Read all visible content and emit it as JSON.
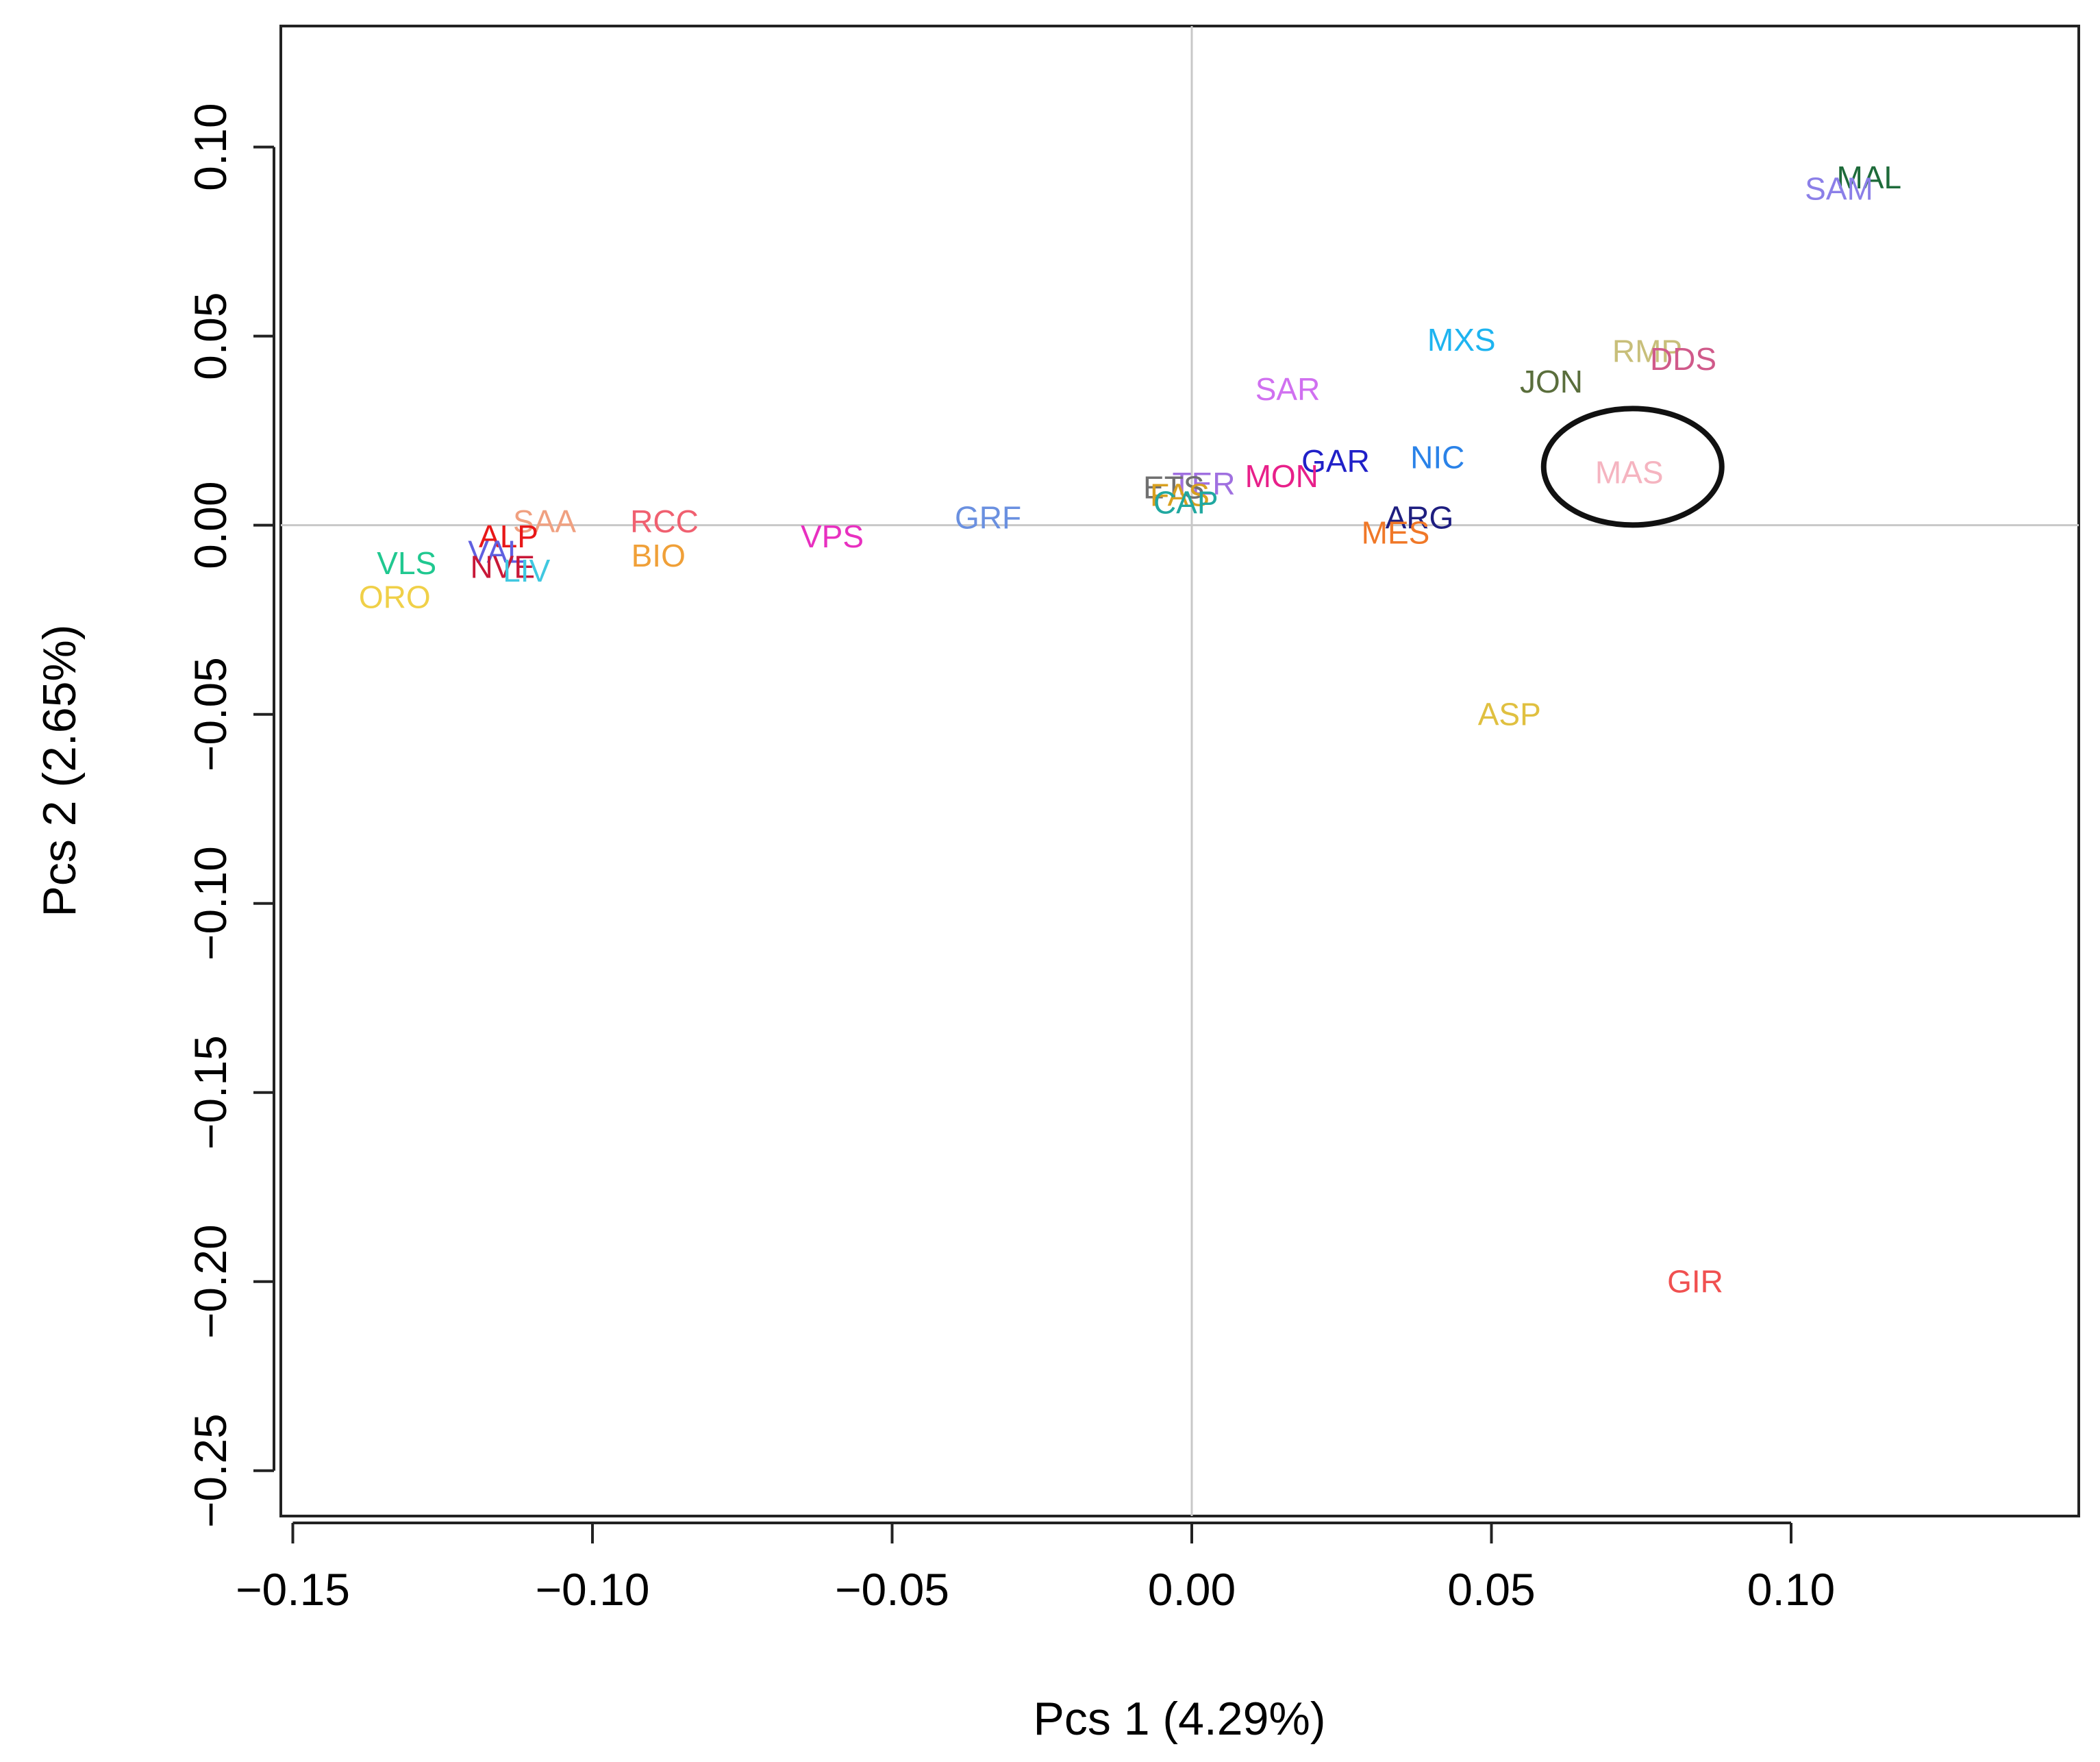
{
  "chart_data": {
    "type": "scatter",
    "title": "",
    "xlabel": "Pcs 1 (4.29%)",
    "ylabel": "Pcs 2 (2.65%)",
    "xlim": [
      -0.152,
      0.148
    ],
    "ylim": [
      -0.262,
      0.132
    ],
    "xticks": [
      -0.15,
      -0.1,
      -0.05,
      0.0,
      0.05,
      0.1
    ],
    "xtick_labels": [
      "−0.15",
      "−0.10",
      "−0.05",
      "0.00",
      "0.05",
      "0.10"
    ],
    "yticks": [
      0.1,
      0.05,
      0.0,
      -0.05,
      -0.1,
      -0.15,
      -0.2,
      -0.25
    ],
    "ytick_labels": [
      "0.10",
      "0.05",
      "0.00",
      "−0.05",
      "−0.10",
      "−0.15",
      "−0.20",
      "−0.25"
    ],
    "reference_lines": {
      "x": 0,
      "y": 0,
      "color": "#c8c8c8"
    },
    "highlight": {
      "label": "MAS",
      "shape": "ellipse"
    },
    "points": [
      {
        "label": "MAL",
        "x": 0.113,
        "y": 0.092,
        "color": "#1e6b3a"
      },
      {
        "label": "SAM",
        "x": 0.108,
        "y": 0.089,
        "color": "#8b7fe8"
      },
      {
        "label": "MXS",
        "x": 0.045,
        "y": 0.049,
        "color": "#1eb4f0"
      },
      {
        "label": "RMP",
        "x": 0.076,
        "y": 0.046,
        "color": "#c8bf7a"
      },
      {
        "label": "DDS",
        "x": 0.082,
        "y": 0.044,
        "color": "#d05a8a"
      },
      {
        "label": "JON",
        "x": 0.06,
        "y": 0.038,
        "color": "#5a6e3c"
      },
      {
        "label": "SAR",
        "x": 0.016,
        "y": 0.036,
        "color": "#d070f0"
      },
      {
        "label": "GAR",
        "x": 0.024,
        "y": 0.017,
        "color": "#2020c8"
      },
      {
        "label": "NIC",
        "x": 0.041,
        "y": 0.018,
        "color": "#2a82e8"
      },
      {
        "label": "MAS",
        "x": 0.073,
        "y": 0.014,
        "color": "#f5b4c0"
      },
      {
        "label": "MON",
        "x": 0.015,
        "y": 0.013,
        "color": "#e8208a"
      },
      {
        "label": "TER",
        "x": 0.002,
        "y": 0.011,
        "color": "#a070e0"
      },
      {
        "label": "ETS",
        "x": -0.003,
        "y": 0.01,
        "color": "#707070"
      },
      {
        "label": "FAS",
        "x": -0.002,
        "y": 0.008,
        "color": "#d8a020"
      },
      {
        "label": "CAP",
        "x": -0.001,
        "y": 0.006,
        "color": "#20a8a0"
      },
      {
        "label": "GRF",
        "x": -0.034,
        "y": 0.002,
        "color": "#6a90e0"
      },
      {
        "label": "ARG",
        "x": 0.038,
        "y": 0.002,
        "color": "#1e1e80"
      },
      {
        "label": "MES",
        "x": 0.034,
        "y": -0.002,
        "color": "#f07828"
      },
      {
        "label": "RCC",
        "x": -0.088,
        "y": 0.001,
        "color": "#f06070"
      },
      {
        "label": "SAA",
        "x": -0.108,
        "y": 0.001,
        "color": "#f0a080"
      },
      {
        "label": "VPS",
        "x": -0.06,
        "y": -0.003,
        "color": "#e830c0"
      },
      {
        "label": "ALP",
        "x": -0.114,
        "y": -0.003,
        "color": "#e81818"
      },
      {
        "label": "BIO",
        "x": -0.089,
        "y": -0.008,
        "color": "#f0a038"
      },
      {
        "label": "VAL",
        "x": -0.116,
        "y": -0.007,
        "color": "#6060e0"
      },
      {
        "label": "VLS",
        "x": -0.131,
        "y": -0.01,
        "color": "#20c890"
      },
      {
        "label": "NVE",
        "x": -0.115,
        "y": -0.011,
        "color": "#c81838"
      },
      {
        "label": "LIV",
        "x": -0.111,
        "y": -0.012,
        "color": "#40c8e0"
      },
      {
        "label": "ORO",
        "x": -0.133,
        "y": -0.019,
        "color": "#f0d048"
      },
      {
        "label": "ASP",
        "x": 0.053,
        "y": -0.05,
        "color": "#e0c040"
      },
      {
        "label": "GIR",
        "x": 0.084,
        "y": -0.2,
        "color": "#f05050"
      }
    ]
  }
}
